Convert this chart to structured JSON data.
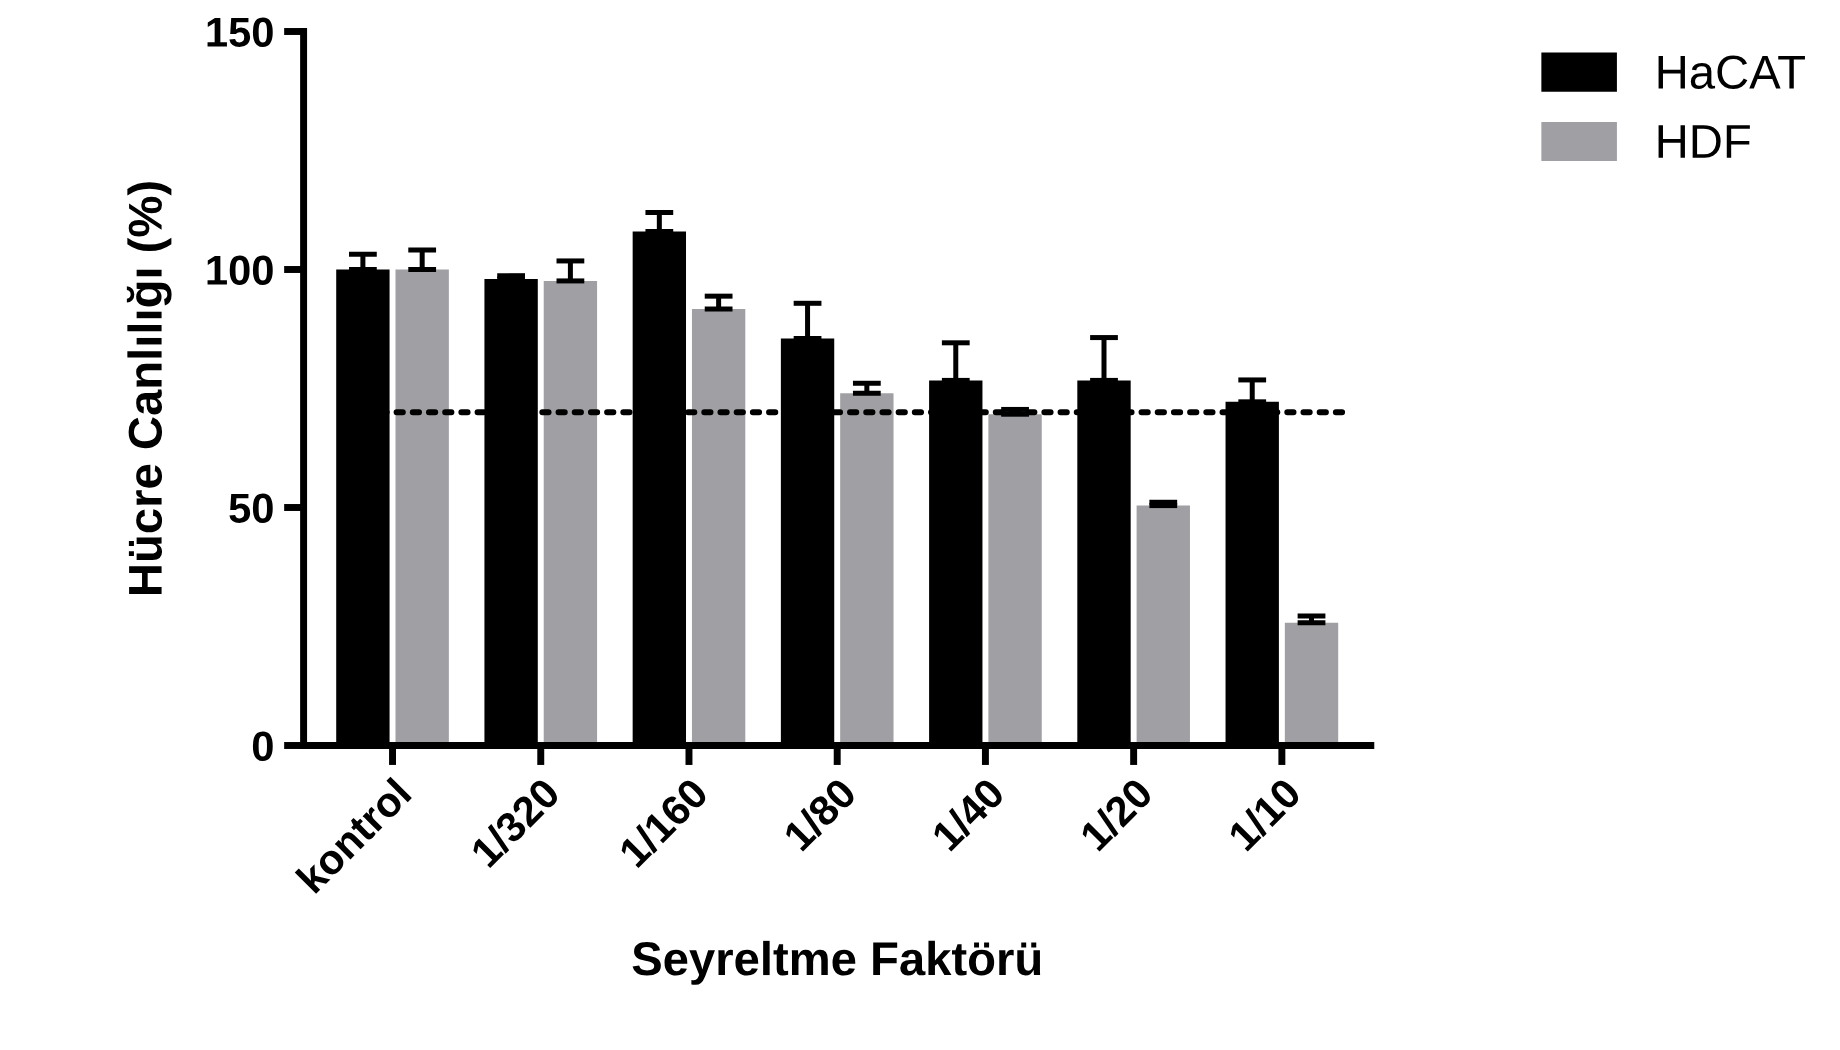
{
  "chart_data": {
    "type": "bar",
    "xlabel": "Seyreltme Faktörü",
    "ylabel": "Hücre Canlılığı (%)",
    "categories": [
      "kontrol",
      "1/320",
      "1/160",
      "1/80",
      "1/40",
      "1/20",
      "1/10"
    ],
    "series": [
      {
        "name": "HaCAT",
        "color": "#000000",
        "values": [
          100,
          98,
          108,
          85.5,
          76.7,
          76.7,
          72.2
        ],
        "errors": [
          [
            100,
            103.2
          ],
          [
            98,
            98.7
          ],
          [
            108,
            112
          ],
          [
            85.5,
            92.9
          ],
          [
            76.7,
            84.6
          ],
          [
            76.7,
            85.7
          ],
          [
            72.2,
            76.8
          ]
        ]
      },
      {
        "name": "HDF",
        "color": "#a0a0a4",
        "values": [
          100,
          97.6,
          91.7,
          74,
          69.6,
          50.4,
          25.8
        ],
        "errors": [
          [
            100,
            104.1
          ],
          [
            97.6,
            101.8
          ],
          [
            91.7,
            94.4
          ],
          [
            74,
            76.1
          ],
          [
            69.6,
            70.6
          ],
          [
            50.4,
            51.1
          ],
          [
            25.8,
            27.2
          ]
        ]
      }
    ],
    "ylim": [
      0,
      150
    ],
    "yticks": [
      0,
      50,
      100,
      150
    ],
    "ref_lines": [
      {
        "axis": "y",
        "value": 70,
        "line_style": "dotted",
        "color": "#000000"
      }
    ],
    "legend": "top right",
    "grid": false
  }
}
